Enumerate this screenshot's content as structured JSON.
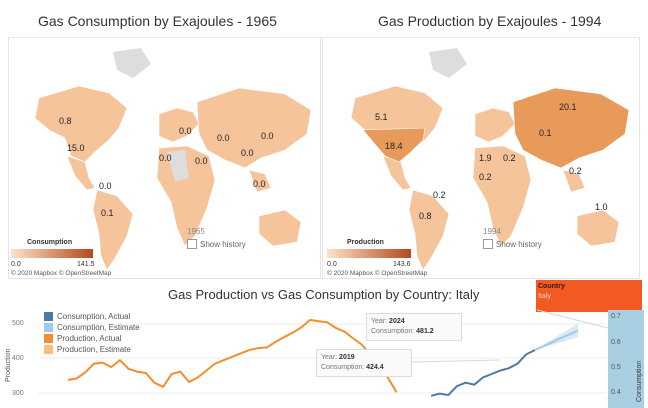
{
  "map_left": {
    "title": "Gas Consumption by Exajoules - 1965",
    "year": "1965",
    "show_history": "Show history",
    "legend": {
      "title": "Consumption",
      "min": "0.0",
      "max": "141.5",
      "color_low": "#fde3c8",
      "color_high": "#b5481d"
    },
    "attribution": "© 2020 Mapbox © OpenStreetMap",
    "labels": [
      "0.8",
      "15.0",
      "0.0",
      "0.0",
      "0.0",
      "0.0",
      "0.0",
      "0.1",
      "0.0",
      "0.0",
      "0.0"
    ]
  },
  "map_right": {
    "title": "Gas Production by Exajoules - 1994",
    "year": "1994",
    "show_history": "Show history",
    "legend": {
      "title": "Production",
      "min": "0.0",
      "max": "143.6",
      "color_low": "#fde3c8",
      "color_high": "#b5481d"
    },
    "attribution": "© 2020 Mapbox © OpenStreetMap",
    "labels": [
      "5.1",
      "18.4",
      "20.1",
      "0.1",
      "1.9",
      "0.2",
      "0.2",
      "0.2",
      "0.8",
      "1.0",
      "0.2"
    ]
  },
  "chart_data": {
    "type": "line",
    "title": "Gas Production vs Gas Consumption by Country: Italy",
    "y_ticks": [
      "500",
      "400",
      "300"
    ],
    "right_ticks": [
      "0.7",
      "0.6",
      "0.5",
      "0.4"
    ],
    "ylim": [
      270,
      525
    ],
    "xlim": [
      1965,
      2026
    ],
    "series": [
      {
        "name": "Consumption, Actual",
        "color": "#4e79a7",
        "x": [
          2007,
          2008,
          2009,
          2010,
          2011,
          2012,
          2013,
          2014,
          2015,
          2016,
          2017,
          2018,
          2019
        ],
        "values": [
          292,
          298,
          294,
          320,
          330,
          324,
          345,
          355,
          365,
          372,
          385,
          412,
          424.4
        ]
      },
      {
        "name": "Consumption, Estimate",
        "color": "#a0cbe8",
        "x": [
          2019,
          2020,
          2021,
          2022,
          2023,
          2024
        ],
        "values": [
          424.4,
          436,
          447,
          459,
          470,
          481.2
        ]
      },
      {
        "name": "Production, Actual",
        "color": "#f28e2b",
        "x": [
          1965,
          1966,
          1967,
          1968,
          1969,
          1970,
          1971,
          1972,
          1973,
          1974,
          1975,
          1976,
          1977,
          1978,
          1979,
          1980,
          1981,
          1982,
          1983,
          1984,
          1985,
          1986,
          1987,
          1988,
          1989,
          1990,
          1991,
          1992,
          1993,
          1994,
          1995,
          1996,
          1997,
          1998,
          1999,
          2000,
          2001,
          2002,
          2003
        ],
        "values": [
          338,
          342,
          360,
          385,
          388,
          375,
          395,
          370,
          362,
          358,
          330,
          318,
          355,
          362,
          332,
          345,
          365,
          385,
          395,
          405,
          415,
          425,
          430,
          432,
          448,
          462,
          475,
          490,
          512,
          508,
          505,
          488,
          478,
          458,
          440,
          412,
          380,
          345,
          302
        ]
      },
      {
        "name": "Production, Estimate",
        "color": "#ffbe7d",
        "x": [],
        "values": []
      }
    ],
    "tooltips": [
      {
        "year_label": "Year:",
        "year": "2024",
        "metric_label": "Consumption:",
        "metric": "481.2"
      },
      {
        "year_label": "Year:",
        "year": "2019",
        "metric_label": "Consumption:",
        "metric": "424.4"
      }
    ],
    "y_axis_label": "Production",
    "right_axis_label": "Consumption"
  },
  "country_filter": {
    "label": "Country",
    "value": "Italy"
  }
}
